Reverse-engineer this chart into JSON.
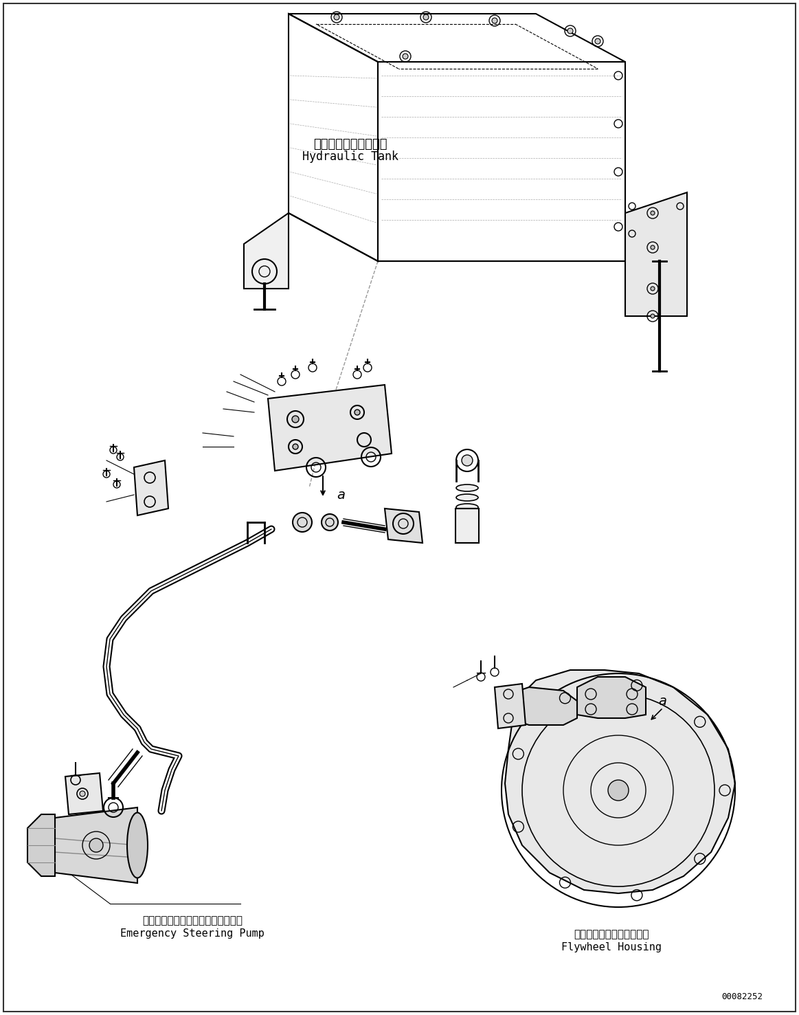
{
  "bg_color": "#ffffff",
  "line_color": "#000000",
  "dashed_color": "#888888",
  "text_color": "#000000",
  "label_hydraulic_tank_jp": "ハイドロリックタンク",
  "label_hydraulic_tank_en": "Hydraulic Tank",
  "label_emergency_pump_jp": "エマージェンシステアリングポンプ",
  "label_emergency_pump_en": "Emergency Steering Pump",
  "label_flywheel_jp": "フライホイールハウジング",
  "label_flywheel_en": "Flywheel Housing",
  "doc_number": "00082252",
  "label_a1": "a",
  "label_a2": "a",
  "figsize": [
    11.63,
    14.77
  ],
  "dpi": 100
}
